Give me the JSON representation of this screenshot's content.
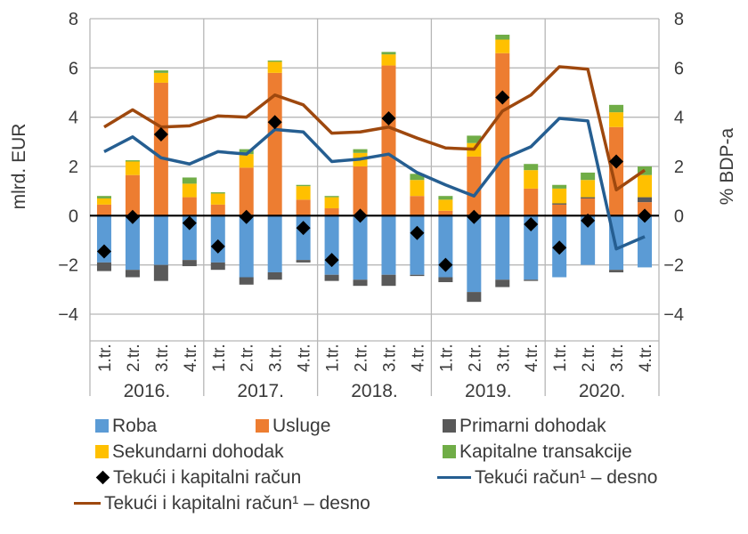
{
  "chart_data": {
    "type": "bar",
    "subtype": "stacked-bar-with-lines",
    "title": "",
    "ylabel": "mlrd. EUR",
    "y2label": "% BDP-a",
    "ylim": [
      -4,
      8
    ],
    "y2lim": [
      -4,
      8
    ],
    "yticks": [
      "8",
      "6",
      "4",
      "2",
      "0",
      "−2",
      "−4"
    ],
    "ytick_values": [
      8,
      6,
      4,
      2,
      0,
      -2,
      -4
    ],
    "grid": true,
    "categories": [
      "1.tr.",
      "2.tr.",
      "3.tr.",
      "4.tr.",
      "1.tr.",
      "2.tr.",
      "3.tr.",
      "4.tr.",
      "1.tr.",
      "2.tr.",
      "3.tr.",
      "4.tr.",
      "1.tr.",
      "2.tr.",
      "3.tr.",
      "4.tr.",
      "1.tr.",
      "2.tr.",
      "3.tr.",
      "4.tr."
    ],
    "year_groups": [
      "2016.",
      "2017.",
      "2018.",
      "2019.",
      "2020."
    ],
    "stacked_series": [
      {
        "name": "Roba",
        "color": "#5b9bd5",
        "values": [
          -1.9,
          -2.2,
          -2.0,
          -1.8,
          -1.9,
          -2.5,
          -2.3,
          -1.8,
          -2.4,
          -2.6,
          -2.4,
          -2.4,
          -2.5,
          -3.1,
          -2.6,
          -2.6,
          -2.5,
          -2.0,
          -2.2,
          -2.1
        ]
      },
      {
        "name": "Usluge",
        "color": "#ed7d31",
        "values": [
          0.45,
          1.65,
          5.4,
          0.75,
          0.45,
          1.95,
          5.8,
          0.65,
          0.3,
          2.0,
          6.1,
          0.8,
          0.2,
          2.4,
          6.6,
          1.1,
          0.45,
          0.7,
          3.6,
          0.55
        ]
      },
      {
        "name": "Primarni dohodak",
        "color": "#595959",
        "values": [
          -0.35,
          -0.3,
          -0.65,
          -0.25,
          -0.3,
          -0.3,
          -0.3,
          -0.1,
          -0.25,
          -0.25,
          -0.45,
          -0.05,
          -0.2,
          -0.4,
          -0.3,
          -0.05,
          0.05,
          0.05,
          -0.1,
          0.2
        ]
      },
      {
        "name": "Sekundarni dohodak",
        "color": "#ffc000",
        "values": [
          0.25,
          0.55,
          0.4,
          0.55,
          0.45,
          0.55,
          0.45,
          0.55,
          0.45,
          0.55,
          0.45,
          0.65,
          0.45,
          0.55,
          0.55,
          0.75,
          0.6,
          0.7,
          0.6,
          0.9
        ]
      },
      {
        "name": "Kapitalne transakcije",
        "color": "#70ad47",
        "values": [
          0.1,
          0.05,
          0.1,
          0.25,
          0.05,
          0.2,
          0.05,
          0.05,
          0.05,
          0.15,
          0.1,
          0.25,
          0.15,
          0.3,
          0.2,
          0.25,
          0.15,
          0.3,
          0.3,
          0.35
        ]
      }
    ],
    "markers": {
      "name": "Tekući i kapitalni račun",
      "color": "#000000",
      "values": [
        -1.45,
        -0.05,
        3.3,
        -0.3,
        -1.25,
        -0.05,
        3.8,
        -0.5,
        -1.8,
        0.0,
        3.95,
        -0.7,
        -2.0,
        -0.05,
        4.8,
        -0.35,
        -1.3,
        -0.2,
        2.2,
        0.0
      ]
    },
    "line_series": [
      {
        "name": "Tekući račun¹ – desno",
        "color": "#255e91",
        "axis": "right",
        "values": [
          2.6,
          3.2,
          2.35,
          2.1,
          2.6,
          2.5,
          3.5,
          3.4,
          2.2,
          2.3,
          2.5,
          1.75,
          1.25,
          0.8,
          2.3,
          2.8,
          3.95,
          3.85,
          -1.35,
          -0.85
        ]
      },
      {
        "name": "Tekući i kapitalni račun¹ – desno",
        "color": "#9e480e",
        "axis": "right",
        "values": [
          3.6,
          4.3,
          3.6,
          3.65,
          4.05,
          4.0,
          4.9,
          4.5,
          3.35,
          3.4,
          3.6,
          3.15,
          2.75,
          2.7,
          4.25,
          4.9,
          6.05,
          5.95,
          1.05,
          1.85
        ]
      }
    ],
    "legend_position": "bottom"
  },
  "legend": {
    "items": [
      {
        "label": "Roba",
        "color": "#5b9bd5"
      },
      {
        "label": "Usluge",
        "color": "#ed7d31"
      },
      {
        "label": "Primarni dohodak",
        "color": "#595959"
      },
      {
        "label": "Sekundarni dohodak",
        "color": "#ffc000"
      },
      {
        "label": "Kapitalne transakcije",
        "color": "#70ad47"
      },
      {
        "label": "Tekući i kapitalni račun",
        "color": "#000000"
      },
      {
        "label": "Tekući račun¹ – desno",
        "color": "#255e91"
      },
      {
        "label": "Tekući i kapitalni račun¹ – desno",
        "color": "#9e480e"
      }
    ]
  }
}
